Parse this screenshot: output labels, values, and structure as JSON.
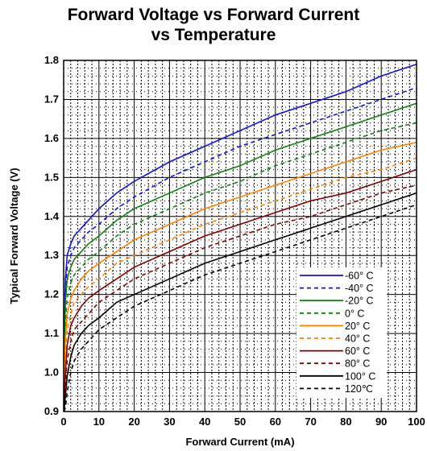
{
  "chart_data": {
    "type": "line",
    "title_line1": "Forward Voltage vs Forward Current",
    "title_line2": "vs Temperature",
    "xlabel": "Forward Current (mA)",
    "ylabel": "Typical Forward Voltage (V)",
    "xlim": [
      0,
      100
    ],
    "ylim": [
      0.9,
      1.8
    ],
    "xticks": [
      "0",
      "10",
      "20",
      "30",
      "40",
      "50",
      "60",
      "70",
      "80",
      "90",
      "100"
    ],
    "yticks": [
      "0.9",
      "1.0",
      "1.1",
      "1.2",
      "1.3",
      "1.4",
      "1.5",
      "1.6",
      "1.7",
      "1.8"
    ],
    "grid": "major solid, minor dotted",
    "legend_position": "bottom-right",
    "x": [
      0.1,
      0.5,
      1,
      2,
      3,
      5,
      7,
      10,
      15,
      20,
      30,
      40,
      50,
      60,
      70,
      80,
      90,
      100
    ],
    "series": [
      {
        "name": "-60° C",
        "color": "#1010e0",
        "dash": "solid",
        "values": [
          1.04,
          1.24,
          1.3,
          1.33,
          1.35,
          1.37,
          1.39,
          1.42,
          1.46,
          1.49,
          1.54,
          1.58,
          1.62,
          1.66,
          1.69,
          1.72,
          1.76,
          1.79
        ]
      },
      {
        "name": "-40° C",
        "color": "#1010e0",
        "dash": "dashed",
        "values": [
          1.02,
          1.21,
          1.27,
          1.3,
          1.32,
          1.34,
          1.36,
          1.38,
          1.42,
          1.45,
          1.5,
          1.54,
          1.58,
          1.61,
          1.64,
          1.67,
          1.7,
          1.73
        ]
      },
      {
        "name": "-20° C",
        "color": "#108010",
        "dash": "solid",
        "values": [
          1.0,
          1.18,
          1.24,
          1.27,
          1.29,
          1.31,
          1.33,
          1.35,
          1.39,
          1.42,
          1.46,
          1.5,
          1.53,
          1.57,
          1.6,
          1.63,
          1.66,
          1.69
        ]
      },
      {
        "name": "0° C",
        "color": "#108010",
        "dash": "dashed",
        "values": [
          0.97,
          1.13,
          1.19,
          1.23,
          1.25,
          1.27,
          1.29,
          1.31,
          1.35,
          1.38,
          1.42,
          1.46,
          1.49,
          1.53,
          1.56,
          1.59,
          1.62,
          1.64
        ]
      },
      {
        "name": "20° C",
        "color": "#ff8000",
        "dash": "solid",
        "values": [
          0.94,
          1.09,
          1.15,
          1.19,
          1.21,
          1.24,
          1.26,
          1.28,
          1.31,
          1.34,
          1.38,
          1.42,
          1.45,
          1.48,
          1.51,
          1.54,
          1.57,
          1.59
        ]
      },
      {
        "name": "40° C",
        "color": "#ff8000",
        "dash": "dashed",
        "values": [
          0.93,
          1.04,
          1.11,
          1.15,
          1.18,
          1.2,
          1.22,
          1.24,
          1.28,
          1.3,
          1.34,
          1.38,
          1.41,
          1.44,
          1.47,
          1.5,
          1.52,
          1.55
        ]
      },
      {
        "name": "60° C",
        "color": "#800000",
        "dash": "solid",
        "values": [
          0.92,
          1.0,
          1.07,
          1.12,
          1.14,
          1.17,
          1.19,
          1.21,
          1.24,
          1.27,
          1.31,
          1.35,
          1.38,
          1.41,
          1.44,
          1.46,
          1.49,
          1.52
        ]
      },
      {
        "name": "80° C",
        "color": "#800000",
        "dash": "dashed",
        "values": [
          0.91,
          0.97,
          1.03,
          1.08,
          1.11,
          1.13,
          1.15,
          1.18,
          1.21,
          1.24,
          1.28,
          1.32,
          1.35,
          1.38,
          1.4,
          1.43,
          1.46,
          1.48
        ]
      },
      {
        "name": "100° C",
        "color": "#000000",
        "dash": "solid",
        "values": [
          0.9,
          0.94,
          0.99,
          1.04,
          1.07,
          1.1,
          1.12,
          1.14,
          1.18,
          1.2,
          1.24,
          1.28,
          1.31,
          1.34,
          1.37,
          1.4,
          1.43,
          1.46
        ]
      },
      {
        "name": "120℃",
        "color": "#000000",
        "dash": "dashed",
        "values": [
          0.9,
          0.91,
          0.95,
          1.0,
          1.03,
          1.06,
          1.08,
          1.11,
          1.14,
          1.17,
          1.21,
          1.25,
          1.28,
          1.31,
          1.34,
          1.37,
          1.4,
          1.43
        ]
      }
    ]
  }
}
